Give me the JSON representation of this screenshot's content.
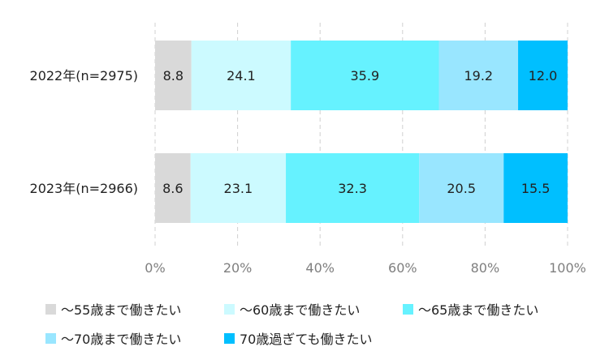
{
  "chart_data": {
    "type": "bar",
    "orientation": "horizontal",
    "stacked": true,
    "categories": [
      "2022年(n=2975)",
      "2023年(n=2966)"
    ],
    "series": [
      {
        "name": "～55歳まで働きたい",
        "values": [
          8.8,
          8.6
        ],
        "color": "#d9d9d9"
      },
      {
        "name": "～60歳まで働きたい",
        "values": [
          24.1,
          23.1
        ],
        "color": "#ccfaff"
      },
      {
        "name": "～65歳まで働きたい",
        "values": [
          35.9,
          32.3
        ],
        "color": "#66f2ff"
      },
      {
        "name": "～70歳まで働きたい",
        "values": [
          19.2,
          20.5
        ],
        "color": "#99e6ff"
      },
      {
        "name": "70歳過ぎても働きたい",
        "values": [
          12.0,
          15.5
        ],
        "color": "#00bfff"
      }
    ],
    "x_ticks": [
      "0%",
      "20%",
      "40%",
      "60%",
      "80%",
      "100%"
    ],
    "xlim": [
      0,
      100
    ],
    "grid": true,
    "legend_position": "bottom"
  }
}
